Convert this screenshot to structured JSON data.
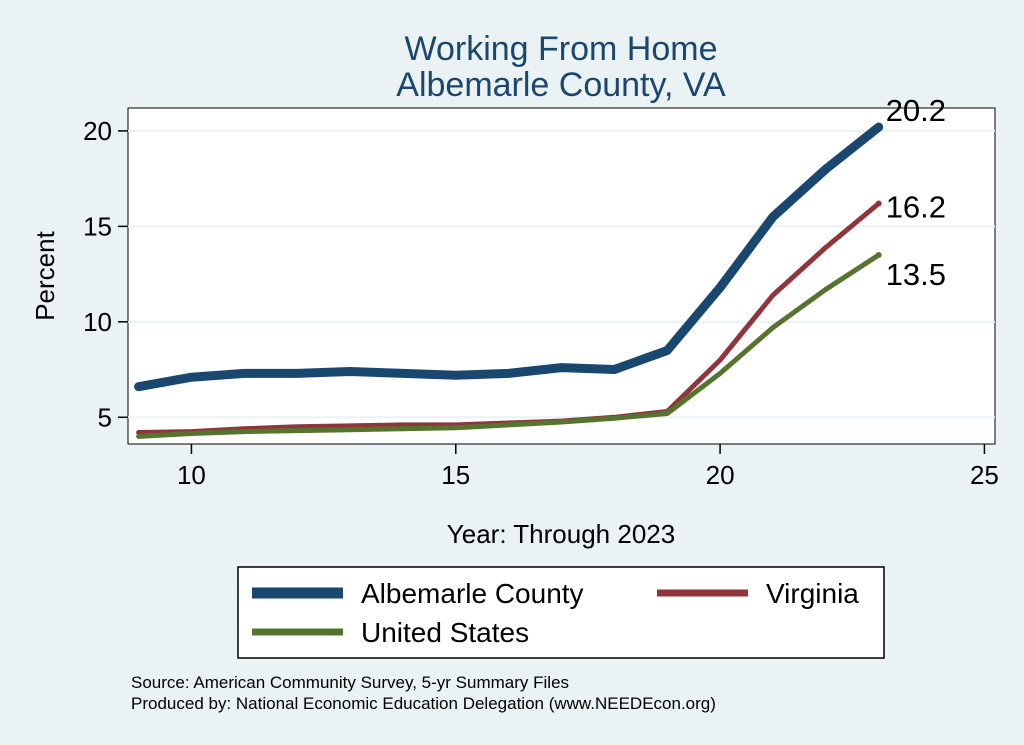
{
  "chart_data": {
    "type": "line",
    "title": "Working From Home",
    "subtitle": "Albemarle County, VA",
    "xlabel": "Year: Through 2023",
    "ylabel": "Percent",
    "xlim": [
      8.8,
      25.2
    ],
    "ylim": [
      3.6,
      21.2
    ],
    "x_ticks": [
      10,
      15,
      20,
      25
    ],
    "y_ticks": [
      5,
      10,
      15,
      20
    ],
    "grid": true,
    "legend_position": "bottom",
    "series": [
      {
        "name": "Albemarle County",
        "color": "#1a476f",
        "x": [
          9,
          10,
          11,
          12,
          13,
          14,
          15,
          16,
          17,
          18,
          19,
          20,
          21,
          22,
          23
        ],
        "values": [
          6.6,
          7.1,
          7.3,
          7.3,
          7.4,
          7.3,
          7.2,
          7.3,
          7.6,
          7.5,
          8.5,
          11.8,
          15.5,
          18.0,
          20.2
        ],
        "end_label": "20.2"
      },
      {
        "name": "Virginia",
        "color": "#90353b",
        "x": [
          9,
          10,
          11,
          12,
          13,
          14,
          15,
          16,
          17,
          18,
          19,
          20,
          21,
          22,
          23
        ],
        "values": [
          4.2,
          4.25,
          4.4,
          4.5,
          4.55,
          4.6,
          4.6,
          4.7,
          4.8,
          5.0,
          5.3,
          8.0,
          11.4,
          13.9,
          16.2
        ],
        "end_label": "16.2"
      },
      {
        "name": "United States",
        "color": "#55752f",
        "x": [
          9,
          10,
          11,
          12,
          13,
          14,
          15,
          16,
          17,
          18,
          19,
          20,
          21,
          22,
          23
        ],
        "values": [
          4.0,
          4.15,
          4.25,
          4.3,
          4.35,
          4.4,
          4.45,
          4.6,
          4.75,
          4.95,
          5.2,
          7.3,
          9.7,
          11.7,
          13.5
        ],
        "end_label": "13.5"
      }
    ]
  },
  "source_note": "Source: American Community Survey, 5-yr Summary Files",
  "produced_note": "Produced by: National Economic Education Delegation (www.NEEDEcon.org)"
}
